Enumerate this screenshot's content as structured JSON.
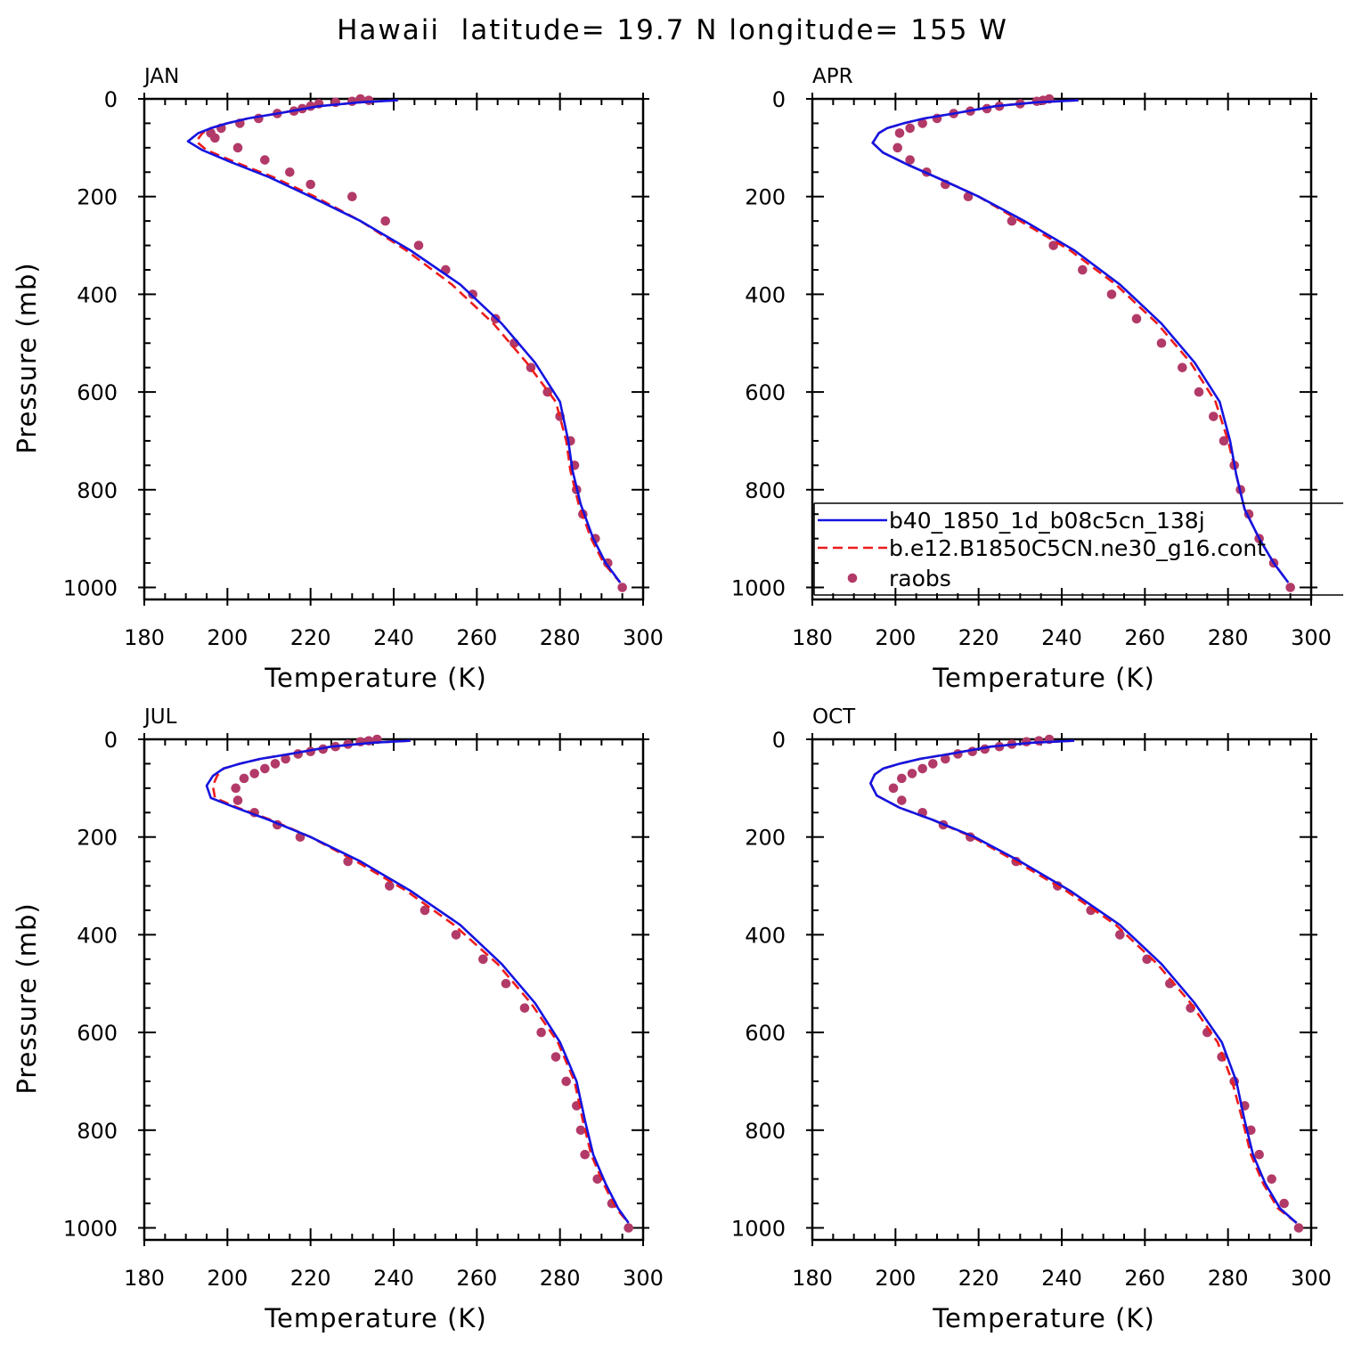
{
  "title": "Hawaii  latitude= 19.7 N longitude= 155 W",
  "colors": {
    "model1": "#1414e0",
    "model2": "#ee1c1c",
    "obs": "#b23a68",
    "axes": "#000000"
  },
  "legend": {
    "items": [
      {
        "label": "b40_1850_1d_b08c5cn_138j",
        "style": "solid-line",
        "color": "#1414e0"
      },
      {
        "label": "b.e12.B1850C5CN.ne30_g16.cont",
        "style": "dashed-line",
        "color": "#ee1c1c"
      },
      {
        "label": "raobs",
        "style": "dot",
        "color": "#b23a68"
      }
    ],
    "placement": "inside APR panel, lower-right"
  },
  "chart_data": [
    {
      "type": "line",
      "panel": "JAN",
      "xlabel": "Temperature (K)",
      "ylabel": "Pressure (mb)",
      "xlim": [
        180,
        300
      ],
      "ylim": [
        1000,
        0
      ],
      "x_ticks": [
        "180",
        "200",
        "220",
        "240",
        "260",
        "280",
        "300"
      ],
      "y_ticks": [
        "0",
        "200",
        "400",
        "600",
        "800",
        "1000"
      ],
      "grid": false,
      "series": [
        {
          "name": "b40_1850_1d_b08c5cn_138j",
          "style": "solid",
          "x": [
            241,
            232,
            222,
            212,
            205,
            200,
            196,
            193,
            190.5,
            194,
            201,
            210,
            220,
            232,
            244,
            256,
            266,
            274,
            280,
            282,
            283,
            285,
            288,
            291,
            294.5
          ],
          "y": [
            3,
            7,
            15,
            30,
            40,
            50,
            60,
            70,
            87,
            105,
            130,
            160,
            200,
            250,
            310,
            380,
            460,
            540,
            620,
            700,
            760,
            830,
            900,
            950,
            990
          ]
        },
        {
          "name": "b.e12.B1850C5CN.ne30_g16.cont",
          "style": "dashed",
          "x": [
            241,
            232,
            222,
            212,
            205,
            200,
            196,
            194,
            192.5,
            195,
            202,
            211,
            221,
            232,
            243,
            254,
            264,
            272,
            279,
            281.5,
            282.5,
            284.5,
            287.5,
            290.5,
            294.5
          ],
          "y": [
            3,
            7,
            15,
            30,
            40,
            50,
            60,
            70,
            87,
            105,
            130,
            160,
            200,
            250,
            310,
            380,
            460,
            540,
            620,
            700,
            760,
            830,
            900,
            950,
            990
          ]
        },
        {
          "name": "raobs",
          "style": "dots",
          "x": [
            232,
            234,
            230,
            226,
            222,
            220,
            218,
            216,
            212,
            207.5,
            203,
            198.5,
            196,
            197,
            202.5,
            209,
            215,
            220,
            230,
            238,
            246,
            252.5,
            259,
            264.5,
            269,
            273,
            277,
            280,
            282.5,
            283.5,
            284,
            285.5,
            288.5,
            291.5,
            295
          ],
          "y": [
            0,
            3,
            5,
            7,
            10,
            15,
            20,
            25,
            30,
            40,
            50,
            60,
            70,
            80,
            100,
            125,
            150,
            175,
            200,
            250,
            300,
            350,
            400,
            450,
            500,
            550,
            600,
            650,
            700,
            750,
            800,
            850,
            900,
            950,
            1000
          ]
        }
      ]
    },
    {
      "type": "line",
      "panel": "APR",
      "xlabel": "Temperature (K)",
      "ylabel": "",
      "xlim": [
        180,
        300
      ],
      "ylim": [
        1000,
        0
      ],
      "x_ticks": [
        "180",
        "200",
        "220",
        "240",
        "260",
        "280",
        "300"
      ],
      "y_ticks": [
        "0",
        "200",
        "400",
        "600",
        "800",
        "1000"
      ],
      "grid": false,
      "series": [
        {
          "name": "b40_1850_1d_b08c5cn_138j",
          "style": "solid",
          "x": [
            244,
            234,
            224,
            214,
            207,
            202,
            198,
            196,
            194.5,
            197,
            203,
            211,
            220,
            231,
            243,
            254,
            264,
            272,
            278,
            280.5,
            282,
            284,
            287.5,
            291,
            294.5
          ],
          "y": [
            3,
            7,
            15,
            30,
            40,
            50,
            60,
            70,
            90,
            110,
            135,
            165,
            200,
            250,
            310,
            380,
            460,
            540,
            620,
            700,
            770,
            840,
            900,
            950,
            990
          ]
        },
        {
          "name": "b.e12.B1850C5CN.ne30_g16.cont",
          "style": "dashed",
          "x": [
            244,
            234,
            224,
            214,
            207,
            202,
            198,
            196,
            194.5,
            197,
            203,
            211,
            220,
            230,
            242,
            253,
            263,
            271,
            277,
            280,
            282,
            284,
            287.5,
            291,
            294.5
          ],
          "y": [
            3,
            7,
            15,
            30,
            40,
            50,
            60,
            70,
            90,
            110,
            135,
            165,
            200,
            250,
            310,
            380,
            460,
            540,
            620,
            700,
            770,
            840,
            900,
            950,
            990
          ]
        },
        {
          "name": "raobs",
          "style": "dots",
          "x": [
            237,
            235.5,
            234,
            230,
            225,
            222,
            218,
            214,
            210,
            206.5,
            203.5,
            201,
            200.5,
            203.5,
            207.5,
            212,
            217.5,
            228,
            238,
            245,
            252,
            258,
            264,
            269,
            273,
            276.5,
            279,
            281.5,
            283,
            285,
            287.5,
            291,
            295
          ],
          "y": [
            0,
            3,
            5,
            10,
            15,
            20,
            25,
            30,
            40,
            50,
            60,
            70,
            100,
            125,
            150,
            175,
            200,
            250,
            300,
            350,
            400,
            450,
            500,
            550,
            600,
            650,
            700,
            750,
            800,
            850,
            900,
            950,
            1000
          ]
        }
      ]
    },
    {
      "type": "line",
      "panel": "JUL",
      "xlabel": "Temperature (K)",
      "ylabel": "Pressure (mb)",
      "xlim": [
        180,
        300
      ],
      "ylim": [
        1000,
        0
      ],
      "x_ticks": [
        "180",
        "200",
        "220",
        "240",
        "260",
        "280",
        "300"
      ],
      "y_ticks": [
        "0",
        "200",
        "400",
        "600",
        "800",
        "1000"
      ],
      "grid": false,
      "series": [
        {
          "name": "b40_1850_1d_b08c5cn_138j",
          "style": "solid",
          "x": [
            244,
            235,
            225,
            215,
            208,
            203,
            199,
            196.5,
            195,
            196,
            202,
            210,
            220,
            232,
            244,
            256,
            266,
            274,
            280,
            284,
            286,
            288,
            291,
            294,
            296.5
          ],
          "y": [
            3,
            7,
            15,
            30,
            40,
            50,
            60,
            75,
            95,
            120,
            140,
            165,
            200,
            250,
            310,
            380,
            460,
            540,
            620,
            700,
            780,
            850,
            910,
            960,
            990
          ]
        },
        {
          "name": "b.e12.B1850C5CN.ne30_g16.cont",
          "style": "dashed",
          "x": [
            244,
            235,
            225,
            215,
            208,
            203,
            199,
            197.5,
            196.5,
            197,
            202.5,
            210.5,
            220,
            231,
            243,
            254.5,
            265,
            273,
            279.5,
            283.5,
            285.5,
            287.5,
            290.5,
            293.5,
            296.5
          ],
          "y": [
            3,
            7,
            15,
            30,
            40,
            50,
            60,
            75,
            95,
            120,
            140,
            165,
            200,
            250,
            310,
            380,
            460,
            540,
            620,
            700,
            780,
            850,
            910,
            960,
            990
          ]
        },
        {
          "name": "raobs",
          "style": "dots",
          "x": [
            236,
            234,
            232,
            229,
            226,
            223,
            220,
            217,
            214,
            211.5,
            209,
            206.5,
            204,
            202,
            202.5,
            206.5,
            212,
            217.5,
            229,
            239,
            247.5,
            255,
            261.5,
            267,
            271.5,
            275.5,
            279,
            281.5,
            284,
            285,
            286,
            289,
            292.5,
            296.5
          ],
          "y": [
            0,
            3,
            5,
            10,
            15,
            20,
            25,
            30,
            40,
            50,
            60,
            70,
            80,
            100,
            125,
            150,
            175,
            200,
            250,
            300,
            350,
            400,
            450,
            500,
            550,
            600,
            650,
            700,
            750,
            800,
            850,
            900,
            950,
            1000
          ]
        }
      ]
    },
    {
      "type": "line",
      "panel": "OCT",
      "xlabel": "Temperature (K)",
      "ylabel": "",
      "xlim": [
        180,
        300
      ],
      "ylim": [
        1000,
        0
      ],
      "x_ticks": [
        "180",
        "200",
        "220",
        "240",
        "260",
        "280",
        "300"
      ],
      "y_ticks": [
        "0",
        "200",
        "400",
        "600",
        "800",
        "1000"
      ],
      "grid": false,
      "series": [
        {
          "name": "b40_1850_1d_b08c5cn_138j",
          "style": "solid",
          "x": [
            243,
            233,
            223,
            213,
            206,
            201,
            197,
            195,
            194,
            195.5,
            201,
            209,
            219,
            230,
            242,
            254,
            264,
            272,
            278.5,
            282,
            284,
            286,
            289,
            292.5,
            296.5
          ],
          "y": [
            3,
            7,
            15,
            30,
            40,
            50,
            60,
            72,
            90,
            115,
            140,
            165,
            200,
            250,
            310,
            380,
            460,
            540,
            620,
            700,
            780,
            850,
            910,
            960,
            990
          ]
        },
        {
          "name": "b.e12.B1850C5CN.ne30_g16.cont",
          "style": "dashed",
          "x": [
            243,
            233,
            223,
            213,
            206,
            201,
            197,
            195,
            194,
            195.5,
            201,
            209,
            218.5,
            229,
            241,
            253,
            263,
            271,
            277.5,
            281,
            283.5,
            285.5,
            288.5,
            292,
            296.5
          ],
          "y": [
            3,
            7,
            15,
            30,
            40,
            50,
            60,
            72,
            90,
            115,
            140,
            165,
            200,
            250,
            310,
            380,
            460,
            540,
            620,
            700,
            780,
            850,
            910,
            960,
            990
          ]
        },
        {
          "name": "raobs",
          "style": "dots",
          "x": [
            237,
            234.5,
            231.5,
            228,
            225,
            221.5,
            218.5,
            215,
            212,
            209,
            206.5,
            204,
            201.5,
            199.5,
            201.5,
            206.5,
            211.5,
            218,
            229,
            239,
            247,
            254,
            260.5,
            266,
            271,
            275,
            278.5,
            281.5,
            284,
            285.5,
            287.5,
            290.5,
            293.5,
            297
          ],
          "y": [
            0,
            3,
            5,
            10,
            15,
            20,
            25,
            30,
            40,
            50,
            60,
            70,
            80,
            100,
            125,
            150,
            175,
            200,
            250,
            300,
            350,
            400,
            450,
            500,
            550,
            600,
            650,
            700,
            750,
            800,
            850,
            900,
            950,
            1000
          ]
        }
      ]
    }
  ]
}
